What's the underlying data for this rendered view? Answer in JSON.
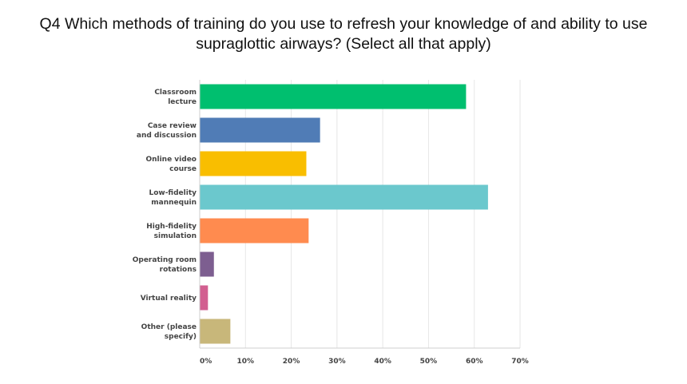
{
  "chart_data": {
    "type": "bar",
    "orientation": "horizontal",
    "title": "Q4 Which methods of training do you use to refresh your knowledge of and ability to use supraglottic airways? (Select all that apply)",
    "categories": [
      [
        "Classroom",
        "lecture"
      ],
      [
        "Case review",
        "and discussion"
      ],
      [
        "Online video",
        "course"
      ],
      [
        "Low-fidelity",
        "mannequin"
      ],
      [
        "High-fidelity",
        "simulation"
      ],
      [
        "Operating room",
        "rotations"
      ],
      [
        "Virtual reality"
      ],
      [
        "Other (please",
        "specify)"
      ]
    ],
    "values": [
      58.2,
      26.3,
      23.3,
      63.0,
      23.8,
      3.1,
      1.8,
      6.7
    ],
    "colors": [
      "#00BF6F",
      "#507CB6",
      "#F9BE00",
      "#6BC8CD",
      "#FF8B4F",
      "#7D5E90",
      "#D25F90",
      "#C8B77A"
    ],
    "xlim": [
      0,
      70
    ],
    "ticks": [
      "0%",
      "10%",
      "20%",
      "30%",
      "40%",
      "50%",
      "60%",
      "70%"
    ],
    "grid": true,
    "xlabel": "",
    "ylabel": ""
  }
}
